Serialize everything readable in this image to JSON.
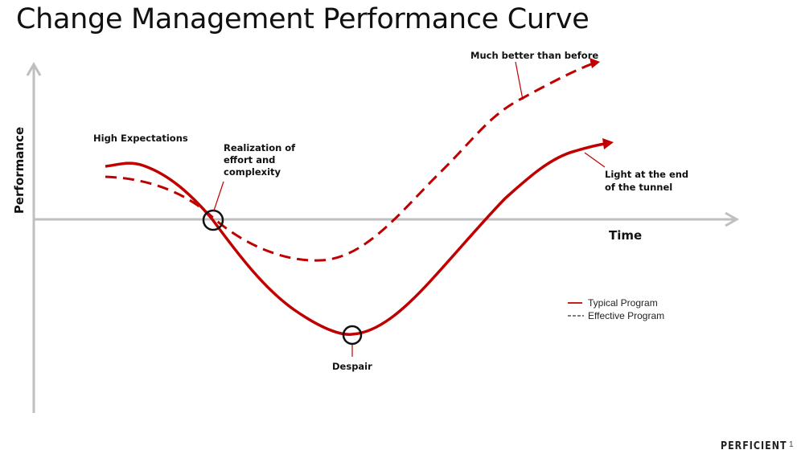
{
  "slide": {
    "title": "Change Management Performance Curve",
    "brand": "PERFICIENT",
    "page_number": "1"
  },
  "axes": {
    "y_label": "Performance",
    "x_label": "Time",
    "color": "#BFBFBF"
  },
  "annotations": {
    "high_expectations": "High Expectations",
    "realization_line1": "Realization of",
    "realization_line2": "effort and",
    "realization_line3": "complexity",
    "despair": "Despair",
    "light_line1": "Light at the end",
    "light_line2": "of the tunnel",
    "much_better": "Much better than before"
  },
  "legend": {
    "typical": "Typical Program",
    "effective": "Effective Program"
  },
  "colors": {
    "curve": "#C00000",
    "circle": "#111111",
    "text": "#111111"
  }
}
